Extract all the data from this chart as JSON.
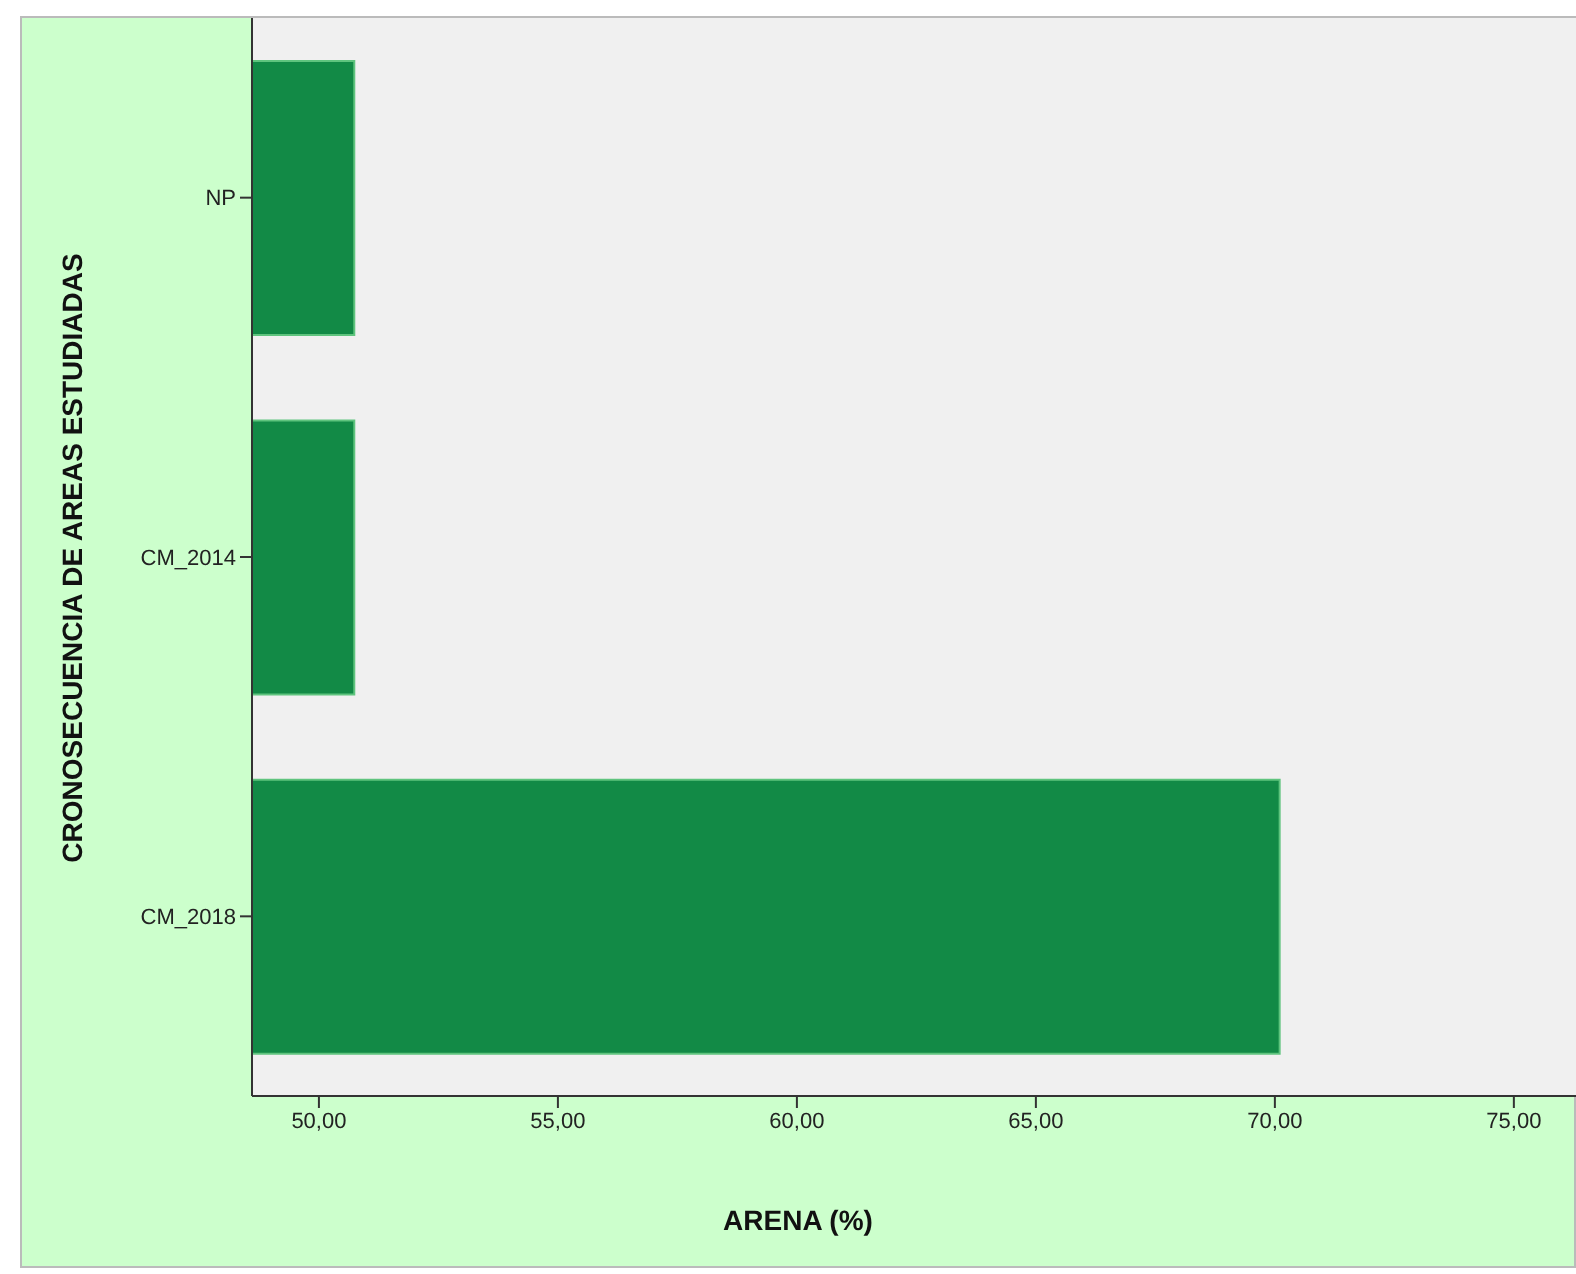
{
  "chart_data": {
    "type": "bar",
    "orientation": "horizontal",
    "xlabel": "ARENA (%)",
    "ylabel": "CRONOSECUENCIA DE AREAS ESTUDIADAS",
    "categories": [
      "NP",
      "CM_2014",
      "CM_2018"
    ],
    "values": [
      50.74,
      50.74,
      70.1
    ],
    "color": "#128a46",
    "xlim": [
      48.6,
      76.3
    ],
    "xticks": [
      {
        "value": 50,
        "label": "50,00"
      },
      {
        "value": 55,
        "label": "55,00"
      },
      {
        "value": 60,
        "label": "60,00"
      },
      {
        "value": 65,
        "label": "65,00"
      },
      {
        "value": 70,
        "label": "70,00"
      },
      {
        "value": 75,
        "label": "75,00"
      }
    ],
    "grid": false,
    "legend": false
  }
}
